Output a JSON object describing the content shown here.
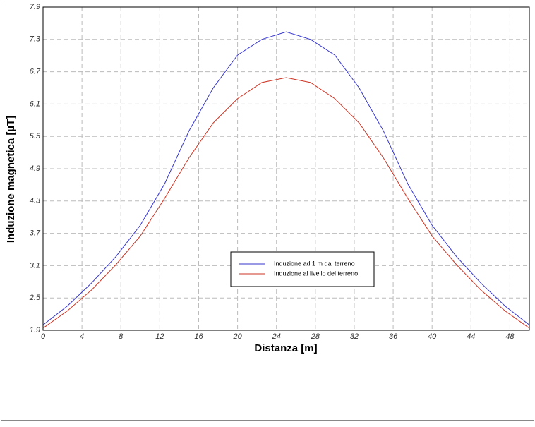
{
  "chart_data": {
    "type": "line",
    "x_label": "Distanza [m]",
    "y_label": "Induzione magnetica [µT]",
    "x": [
      0,
      2.5,
      5,
      7.5,
      10,
      12.5,
      15,
      17.5,
      20,
      22.5,
      25,
      27.5,
      30,
      32.5,
      35,
      37.5,
      40,
      42.5,
      45,
      47.5,
      50
    ],
    "series": [
      {
        "name": "Induzione ad 1 m dal terreno",
        "color": "#3333cc",
        "values": [
          2.0,
          2.35,
          2.78,
          3.27,
          3.85,
          4.62,
          5.6,
          6.4,
          7.01,
          7.3,
          7.44,
          7.3,
          7.01,
          6.4,
          5.6,
          4.62,
          3.85,
          3.27,
          2.78,
          2.35,
          2.0
        ]
      },
      {
        "name": "Induzione al livello del terreno",
        "color": "#cc3322",
        "values": [
          1.94,
          2.26,
          2.65,
          3.12,
          3.65,
          4.35,
          5.1,
          5.75,
          6.2,
          6.5,
          6.59,
          6.5,
          6.2,
          5.75,
          5.1,
          4.35,
          3.65,
          3.12,
          2.65,
          2.26,
          1.94
        ]
      }
    ],
    "xlim": [
      0,
      50
    ],
    "xticks": [
      0,
      4,
      8,
      12,
      16,
      20,
      24,
      28,
      32,
      36,
      40,
      44,
      48
    ],
    "ylim": [
      1.9,
      7.9
    ],
    "yticks": [
      1.9,
      2.5,
      3.1,
      3.7,
      4.3,
      4.9,
      5.5,
      6.1,
      6.7,
      7.3,
      7.9
    ],
    "grid": true
  }
}
